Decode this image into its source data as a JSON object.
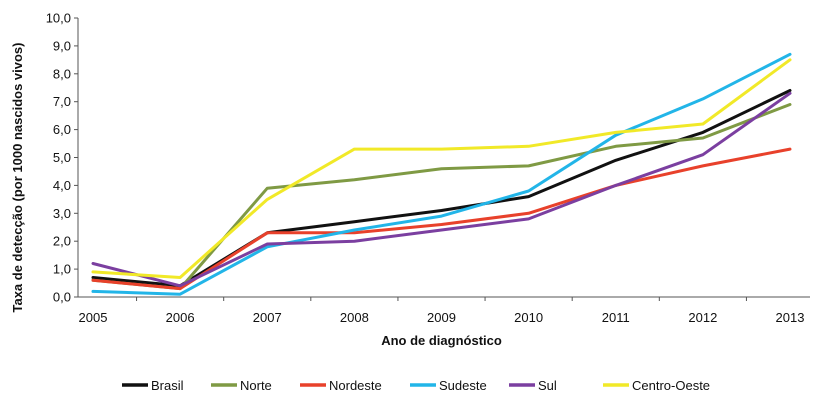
{
  "chart_data": {
    "type": "line",
    "title": "",
    "xlabel": "Ano de diagnóstico",
    "ylabel": "Taxa de detecção (por 1000 nascidos vivos)",
    "ylim": [
      0,
      10
    ],
    "yticks": [
      "0,0",
      "1,0",
      "2,0",
      "3,0",
      "4,0",
      "5,0",
      "6,0",
      "7,0",
      "8,0",
      "9,0",
      "10,0"
    ],
    "categories": [
      "2005",
      "2006",
      "2007",
      "2008",
      "2009",
      "2010",
      "2011",
      "2012",
      "2013"
    ],
    "grid": false,
    "legend_position": "bottom",
    "series": [
      {
        "name": "Brasil",
        "color": "#111111",
        "values": [
          0.7,
          0.4,
          2.3,
          2.7,
          3.1,
          3.6,
          4.9,
          5.9,
          7.4
        ]
      },
      {
        "name": "Norte",
        "color": "#7f9a44",
        "values": [
          0.6,
          0.3,
          3.9,
          4.2,
          4.6,
          4.7,
          5.4,
          5.7,
          6.9
        ]
      },
      {
        "name": "Nordeste",
        "color": "#e8412b",
        "values": [
          0.6,
          0.3,
          2.3,
          2.3,
          2.6,
          3.0,
          4.0,
          4.7,
          5.3
        ]
      },
      {
        "name": "Sudeste",
        "color": "#22b5e8",
        "values": [
          0.2,
          0.1,
          1.8,
          2.4,
          2.9,
          3.8,
          5.8,
          7.1,
          8.7
        ]
      },
      {
        "name": "Sul",
        "color": "#7b3fa0",
        "values": [
          1.2,
          0.4,
          1.9,
          2.0,
          2.4,
          2.8,
          4.0,
          5.1,
          7.3
        ]
      },
      {
        "name": "Centro-Oeste",
        "color": "#f1e928",
        "values": [
          0.9,
          0.7,
          3.5,
          5.3,
          5.3,
          5.4,
          5.9,
          6.2,
          8.5
        ]
      }
    ]
  }
}
